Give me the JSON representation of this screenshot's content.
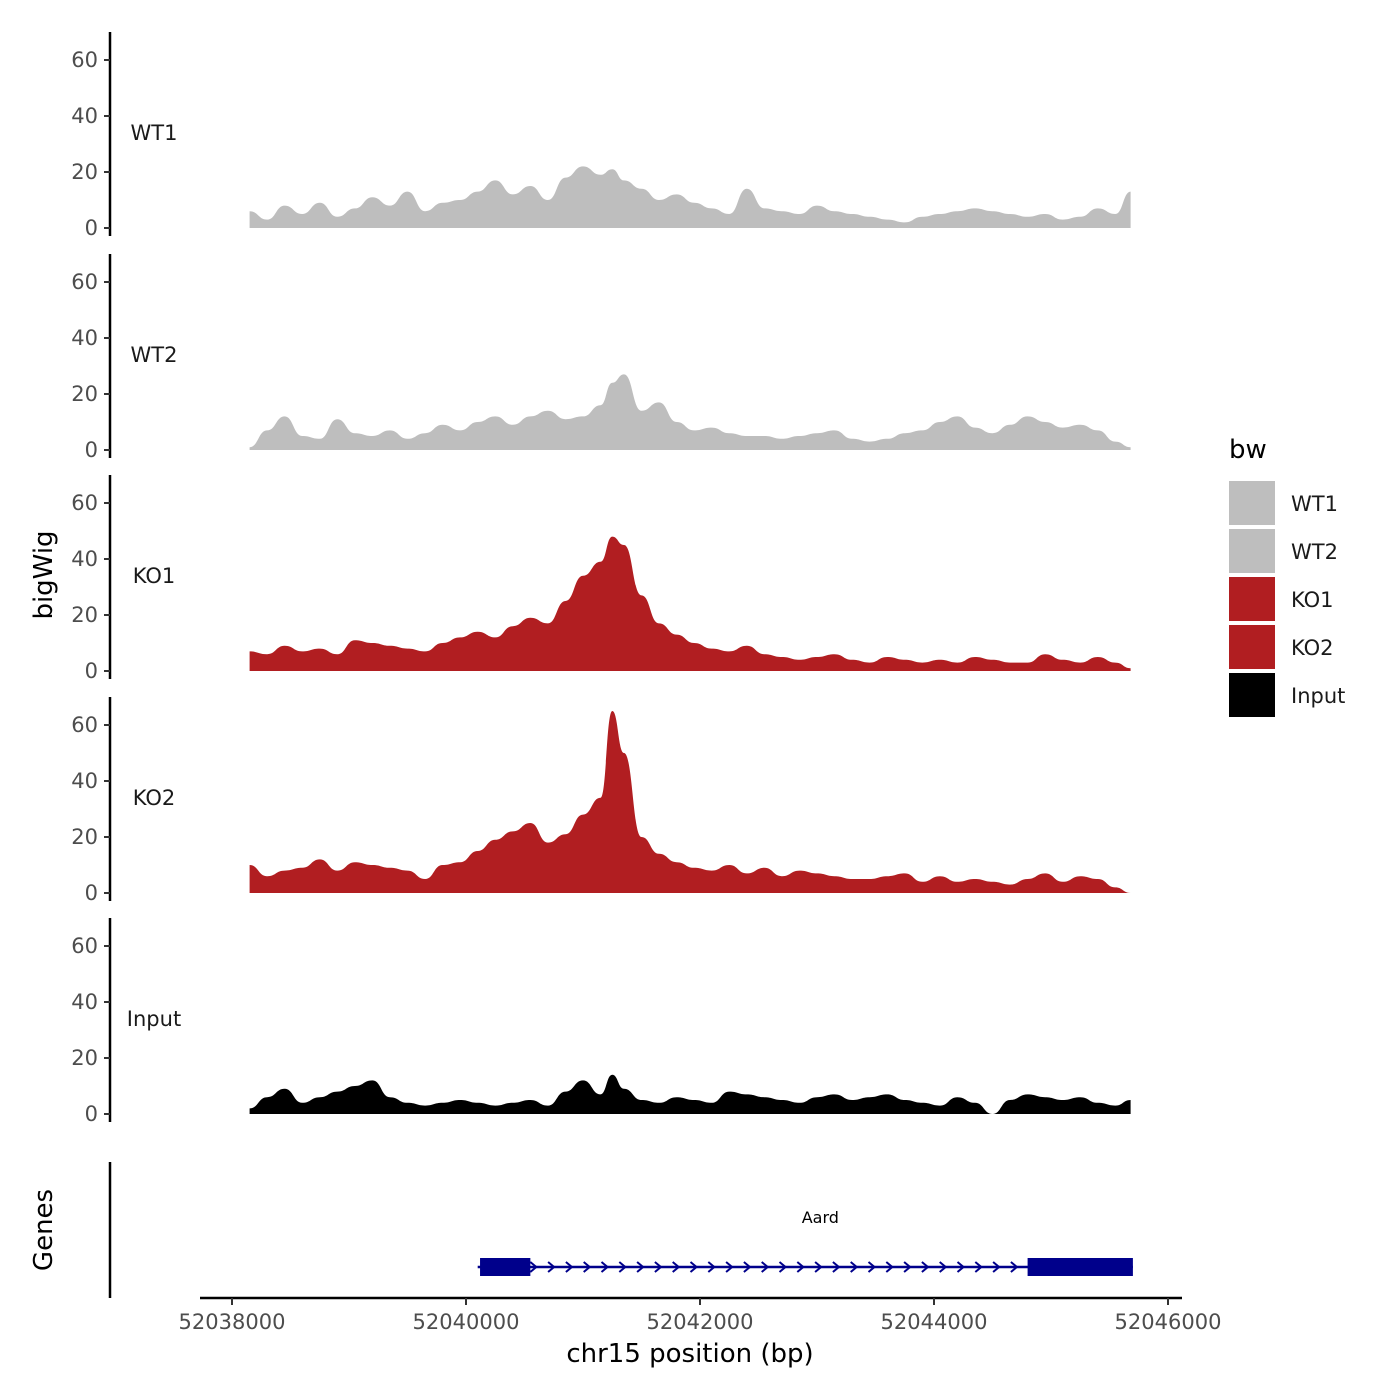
{
  "chart_data": {
    "type": "area",
    "ylabel": "bigWig",
    "xlabel": "chr15 position (bp)",
    "gene_track_label": "Genes",
    "ylim": [
      0,
      70
    ],
    "yticks": [
      "0",
      "20",
      "40",
      "60"
    ],
    "xlim": [
      52037850,
      52046050
    ],
    "xticks": [
      52038000,
      52040000,
      52042000,
      52044000,
      52046000
    ],
    "xtick_labels": [
      "52038000",
      "52040000",
      "52042000",
      "52044000",
      "52046000"
    ],
    "x": [
      52038150,
      52038300,
      52038450,
      52038600,
      52038750,
      52038900,
      52039050,
      52039200,
      52039350,
      52039500,
      52039650,
      52039800,
      52039950,
      52040100,
      52040250,
      52040400,
      52040550,
      52040700,
      52040850,
      52041000,
      52041150,
      52041250,
      52041350,
      52041500,
      52041650,
      52041800,
      52041950,
      52042100,
      52042250,
      52042400,
      52042550,
      52042700,
      52042850,
      52043000,
      52043150,
      52043300,
      52043450,
      52043600,
      52043750,
      52043900,
      52044050,
      52044200,
      52044350,
      52044500,
      52044650,
      52044800,
      52044950,
      52045100,
      52045250,
      52045400,
      52045550,
      52045680
    ],
    "series": [
      {
        "name": "WT1",
        "color": "#bebebe",
        "values": [
          6,
          3,
          8,
          5,
          9,
          4,
          7,
          11,
          8,
          13,
          6,
          9,
          10,
          13,
          17,
          12,
          15,
          10,
          18,
          22,
          19,
          21,
          17,
          14,
          10,
          12,
          9,
          7,
          5,
          14,
          7,
          6,
          5,
          8,
          6,
          5,
          4,
          3,
          2,
          4,
          5,
          6,
          7,
          6,
          5,
          4,
          5,
          3,
          4,
          7,
          5,
          13
        ]
      },
      {
        "name": "WT2",
        "color": "#bebebe",
        "values": [
          1,
          7,
          12,
          5,
          4,
          11,
          6,
          5,
          7,
          4,
          6,
          9,
          7,
          10,
          12,
          9,
          12,
          14,
          11,
          12,
          16,
          24,
          27,
          14,
          17,
          10,
          7,
          8,
          6,
          5,
          5,
          4,
          5,
          6,
          7,
          4,
          3,
          4,
          6,
          7,
          10,
          12,
          8,
          6,
          9,
          12,
          10,
          8,
          9,
          7,
          3,
          1
        ]
      },
      {
        "name": "KO1",
        "color": "#b11e21",
        "values": [
          7,
          6,
          9,
          7,
          8,
          6,
          11,
          10,
          9,
          8,
          7,
          10,
          12,
          14,
          12,
          16,
          19,
          17,
          25,
          34,
          39,
          48,
          45,
          27,
          17,
          13,
          10,
          8,
          7,
          9,
          6,
          5,
          4,
          5,
          6,
          4,
          3,
          5,
          4,
          3,
          4,
          3,
          5,
          4,
          3,
          3,
          6,
          4,
          3,
          5,
          3,
          1
        ]
      },
      {
        "name": "KO2",
        "color": "#b11e21",
        "values": [
          10,
          6,
          8,
          9,
          12,
          8,
          11,
          10,
          9,
          8,
          5,
          10,
          11,
          15,
          19,
          22,
          25,
          18,
          21,
          28,
          34,
          65,
          50,
          20,
          14,
          11,
          9,
          8,
          10,
          7,
          9,
          6,
          8,
          7,
          6,
          5,
          5,
          6,
          7,
          4,
          6,
          4,
          5,
          4,
          3,
          5,
          7,
          4,
          6,
          5,
          2,
          0
        ]
      },
      {
        "name": "Input",
        "color": "#000000",
        "values": [
          2,
          6,
          9,
          4,
          6,
          8,
          10,
          12,
          6,
          4,
          3,
          4,
          5,
          4,
          3,
          4,
          5,
          3,
          8,
          12,
          7,
          14,
          9,
          5,
          4,
          6,
          5,
          4,
          8,
          7,
          6,
          5,
          4,
          6,
          7,
          5,
          6,
          7,
          5,
          4,
          3,
          6,
          4,
          0,
          5,
          7,
          6,
          5,
          6,
          4,
          3,
          5
        ]
      }
    ],
    "legend": {
      "title": "bw",
      "position": "right",
      "entries": [
        {
          "label": "WT1",
          "color": "#bebebe"
        },
        {
          "label": "WT2",
          "color": "#bebebe"
        },
        {
          "label": "KO1",
          "color": "#b11e21"
        },
        {
          "label": "KO2",
          "color": "#b11e21"
        },
        {
          "label": "Input",
          "color": "#000000"
        }
      ]
    },
    "gene": {
      "name": "Aard",
      "color": "#00008b",
      "start": 52040100,
      "end": 52045700,
      "exons": [
        [
          52040120,
          52040550
        ],
        [
          52044800,
          52045700
        ]
      ],
      "strand": "+"
    }
  }
}
